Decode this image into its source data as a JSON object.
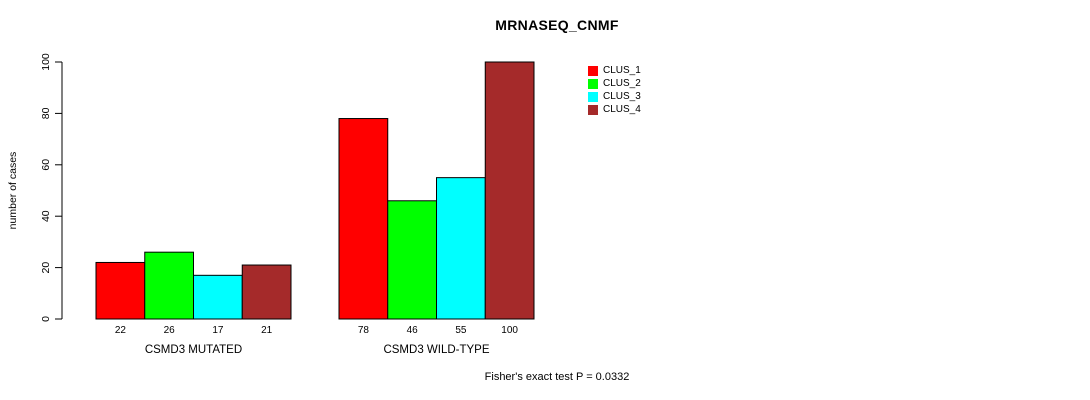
{
  "chart_data": {
    "type": "bar",
    "title": "MRNASEQ_CNMF",
    "ylabel": "number of cases",
    "xlabel": "",
    "ylim": [
      0,
      100
    ],
    "yticks": [
      0,
      20,
      40,
      60,
      80,
      100
    ],
    "grid": false,
    "categories": [
      "CSMD3 MUTATED",
      "CSMD3 WILD-TYPE"
    ],
    "series": [
      {
        "name": "CLUS_1",
        "color": "#ff0000",
        "values": [
          22,
          78
        ]
      },
      {
        "name": "CLUS_2",
        "color": "#00ff00",
        "values": [
          26,
          46
        ]
      },
      {
        "name": "CLUS_3",
        "color": "#00ffff",
        "values": [
          17,
          55
        ]
      },
      {
        "name": "CLUS_4",
        "color": "#a52a2a",
        "values": [
          21,
          100
        ]
      }
    ],
    "bar_value_labels": [
      [
        22,
        26,
        17,
        21
      ],
      [
        78,
        46,
        55,
        100
      ]
    ],
    "legend": {
      "position": "top-right",
      "entries": [
        "CLUS_1",
        "CLUS_2",
        "CLUS_3",
        "CLUS_4"
      ]
    },
    "annotation": "Fisher's exact test P = 0.0332"
  }
}
